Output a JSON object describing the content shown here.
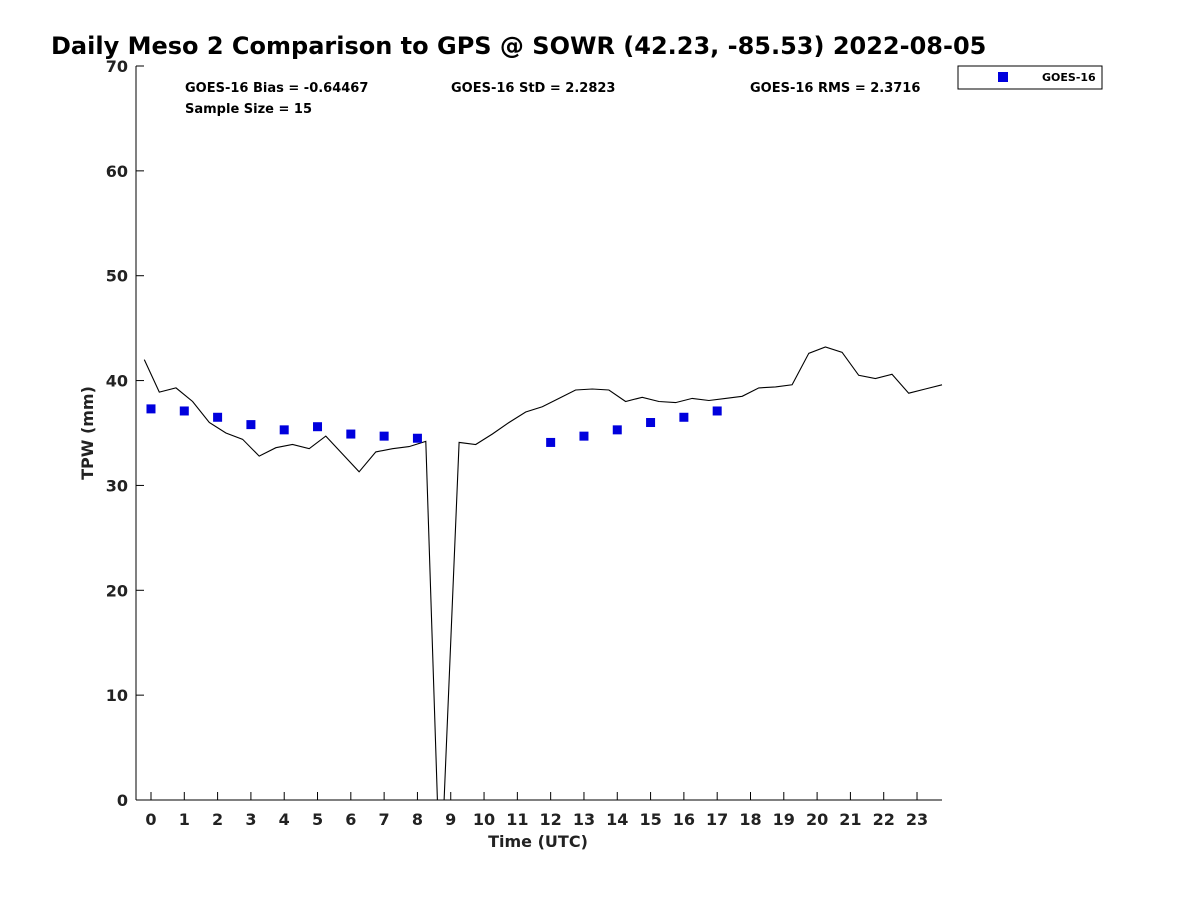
{
  "chart_data": {
    "type": "scatter",
    "title": "Daily Meso 2 Comparison to GPS @ SOWR (42.23, -85.53) 2022-08-05",
    "xlabel": "Time (UTC)",
    "ylabel": "TPW (mm)",
    "xlim": [
      -0.45,
      23.75
    ],
    "ylim": [
      0,
      70
    ],
    "x_ticks": [
      0,
      1,
      2,
      3,
      4,
      5,
      6,
      7,
      8,
      9,
      10,
      11,
      12,
      13,
      14,
      15,
      16,
      17,
      18,
      19,
      20,
      21,
      22,
      23
    ],
    "y_ticks": [
      0,
      10,
      20,
      30,
      40,
      50,
      60,
      70
    ],
    "grid": false,
    "legend_position": "top-right, outside plot",
    "annotations": {
      "bias": "GOES-16 Bias = -0.64467",
      "std": "GOES-16 StD = 2.2823",
      "rms": "GOES-16 RMS = 2.3716",
      "sample_size": "Sample Size = 15"
    },
    "series": [
      {
        "name": "GOES-16",
        "marker": "square",
        "color": "#0000dd",
        "x": [
          0,
          1,
          2,
          3,
          4,
          5,
          6,
          7,
          8,
          12,
          13,
          14,
          15,
          16,
          17
        ],
        "y": [
          37.3,
          37.1,
          36.5,
          35.8,
          35.3,
          35.6,
          34.9,
          34.7,
          34.5,
          34.1,
          34.7,
          35.3,
          36.0,
          36.5,
          37.1
        ]
      },
      {
        "name": "",
        "kind": "line",
        "color": "#000000",
        "x": [
          -0.2,
          0.25,
          0.75,
          1.25,
          1.75,
          2.25,
          2.75,
          3.25,
          3.75,
          4.25,
          4.75,
          5.25,
          5.75,
          6.25,
          6.75,
          7.25,
          7.75,
          8.25,
          8.6,
          8.8,
          9.25,
          9.75,
          10.25,
          10.75,
          11.25,
          11.75,
          12.25,
          12.75,
          13.25,
          13.75,
          14.25,
          14.75,
          15.25,
          15.75,
          16.25,
          16.75,
          17.25,
          17.75,
          18.25,
          18.75,
          19.25,
          19.75,
          20.25,
          20.75,
          21.25,
          21.75,
          22.25,
          22.75,
          23.25,
          23.75
        ],
        "y": [
          42.0,
          38.9,
          39.3,
          38.0,
          36.0,
          35.0,
          34.4,
          32.8,
          33.6,
          33.9,
          33.5,
          34.7,
          33.0,
          31.3,
          33.2,
          33.5,
          33.7,
          34.2,
          0,
          0,
          34.1,
          33.9,
          34.9,
          36.0,
          37.0,
          37.5,
          38.3,
          39.1,
          39.2,
          39.1,
          38.0,
          38.4,
          38.0,
          37.9,
          38.3,
          38.1,
          38.3,
          38.5,
          39.3,
          39.4,
          39.6,
          42.6,
          43.2,
          42.7,
          40.5,
          40.2,
          40.6,
          38.8,
          39.2,
          39.6
        ]
      }
    ]
  },
  "colors": {
    "marker": "#0000dd",
    "line": "#000000",
    "axis": "#000000"
  }
}
